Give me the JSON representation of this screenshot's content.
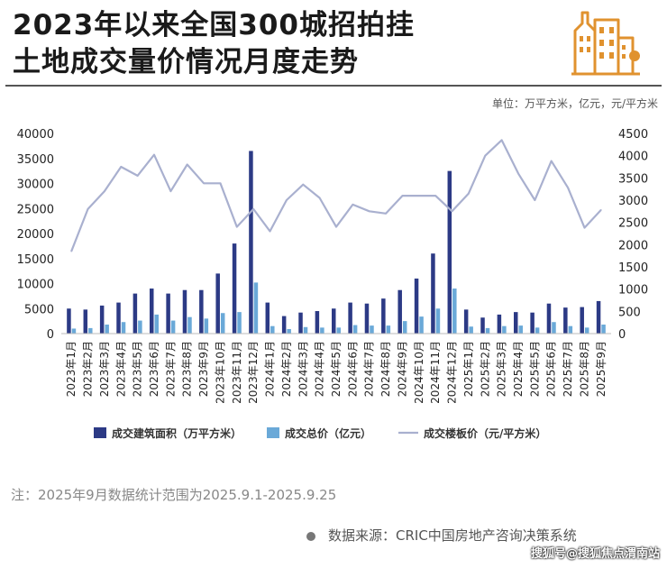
{
  "title_line1": "2023年以来全国300城招拍挂",
  "title_line2": "土地成交量价情况月度走势",
  "unit_text": "单位：万平方米，亿元，元/平方米",
  "note": "注：2025年9月数据统计范围为2025.9.1-2025.9.25",
  "source": "数据来源：CRIC中国房地产咨询决策系统",
  "watermark_corner": "搜狐号@搜狐焦点渭南站",
  "colors": {
    "area_bar": "#2c3a85",
    "value_bar": "#6aa9d8",
    "price_line": "#a9b0cf",
    "logo": "#e0922f"
  },
  "icon": "city-buildings-icon",
  "chart_data": {
    "type": "bar",
    "categories": [
      "2023年1月",
      "2023年2月",
      "2023年3月",
      "2023年4月",
      "2023年5月",
      "2023年6月",
      "2023年7月",
      "2023年8月",
      "2023年9月",
      "2023年10月",
      "2023年11月",
      "2023年12月",
      "2024年1月",
      "2024年2月",
      "2024年3月",
      "2024年4月",
      "2024年5月",
      "2024年6月",
      "2024年7月",
      "2024年8月",
      "2024年9月",
      "2024年10月",
      "2024年11月",
      "2024年12月",
      "2025年1月",
      "2025年2月",
      "2025年3月",
      "2025年4月",
      "2025年5月",
      "2025年6月",
      "2025年7月",
      "2025年8月",
      "2025年9月"
    ],
    "series": [
      {
        "name": "成交建筑面积（万平方米）",
        "type": "bar",
        "axis": "left",
        "values": [
          5000,
          4800,
          5600,
          6200,
          8000,
          9000,
          8000,
          8700,
          8700,
          12000,
          18000,
          36500,
          6200,
          3500,
          4200,
          4500,
          5000,
          6200,
          6000,
          7000,
          8700,
          11000,
          16000,
          32500,
          4800,
          3200,
          3800,
          4300,
          4200,
          6000,
          5200,
          5300,
          6500
        ]
      },
      {
        "name": "成交总价（亿元）",
        "type": "bar",
        "axis": "left",
        "values": [
          1000,
          1100,
          1800,
          2300,
          2600,
          3800,
          2600,
          3300,
          3000,
          4100,
          4300,
          10200,
          1500,
          900,
          1300,
          1200,
          1200,
          1700,
          1600,
          1600,
          2500,
          3400,
          5000,
          9000,
          1400,
          1100,
          1500,
          1600,
          1200,
          2300,
          1500,
          1200,
          1800
        ]
      },
      {
        "name": "成交楼板价（元/平方米）",
        "type": "line",
        "axis": "right",
        "values": [
          1850,
          2800,
          3200,
          3750,
          3550,
          4020,
          3200,
          3800,
          3380,
          3380,
          2400,
          2800,
          2300,
          3000,
          3350,
          3050,
          2400,
          2900,
          2750,
          2700,
          3100,
          3100,
          3100,
          2750,
          3150,
          4000,
          4350,
          3600,
          3000,
          3880,
          3280,
          2380,
          2780
        ]
      }
    ],
    "y_left": {
      "min": 0,
      "max": 40000,
      "ticks": [
        "0",
        "5000",
        "10000",
        "15000",
        "20000",
        "25000",
        "30000",
        "35000",
        "40000"
      ]
    },
    "y_right": {
      "min": 0,
      "max": 4500,
      "ticks": [
        "0",
        "500",
        "1000",
        "1500",
        "2000",
        "2500",
        "3000",
        "3500",
        "4000",
        "4500"
      ]
    },
    "legend_position": "bottom",
    "grid": false
  }
}
